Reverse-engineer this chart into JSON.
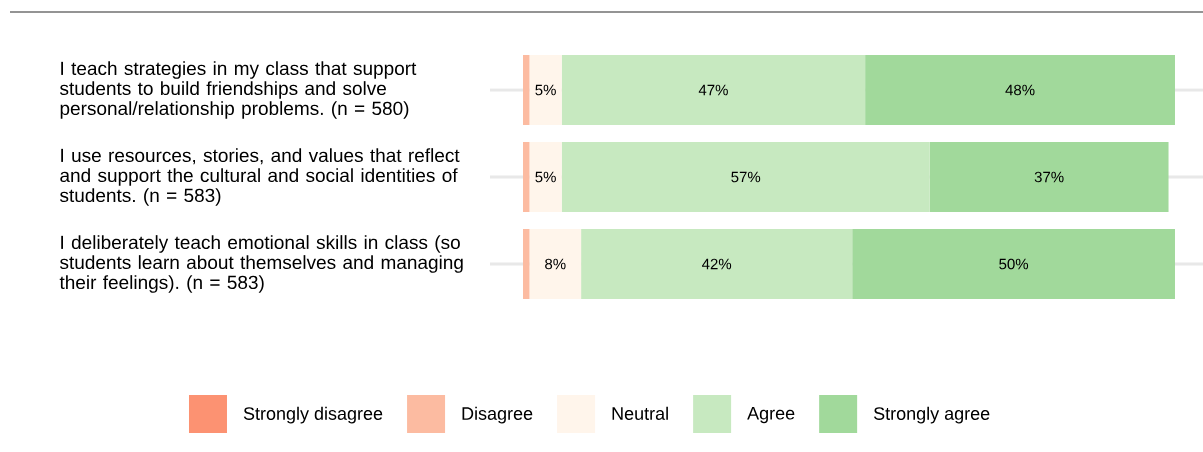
{
  "chart_data": {
    "type": "bar",
    "orientation": "horizontal",
    "stacked": true,
    "grid": "y",
    "legend": "bottom",
    "categories": [
      "I teach strategies in my class that support students to build friendships and solve personal/relationship problems. (n = 580)",
      "I use resources, stories, and values that reflect and support the cultural and social identities of students. (n = 583)",
      "I deliberately teach emotional skills in class (so students learn about themselves and managing their feelings). (n = 583)"
    ],
    "series": [
      {
        "name": "Strongly disagree",
        "color": "#fc9272",
        "values": [
          0,
          0,
          0
        ]
      },
      {
        "name": "Disagree",
        "color": "#fcbba1",
        "values": [
          1,
          1,
          1
        ]
      },
      {
        "name": "Neutral",
        "color": "#fff5eb",
        "values": [
          5,
          5,
          8
        ],
        "value_labels": [
          "5%",
          "5%",
          "8%"
        ]
      },
      {
        "name": "Agree",
        "color": "#c7e9c0",
        "values": [
          47,
          57,
          42
        ],
        "value_labels": [
          "47%",
          "57%",
          "42%"
        ]
      },
      {
        "name": "Strongly agree",
        "color": "#a1d99b",
        "values": [
          48,
          37,
          50
        ],
        "value_labels": [
          "48%",
          "37%",
          "50%"
        ]
      }
    ]
  }
}
